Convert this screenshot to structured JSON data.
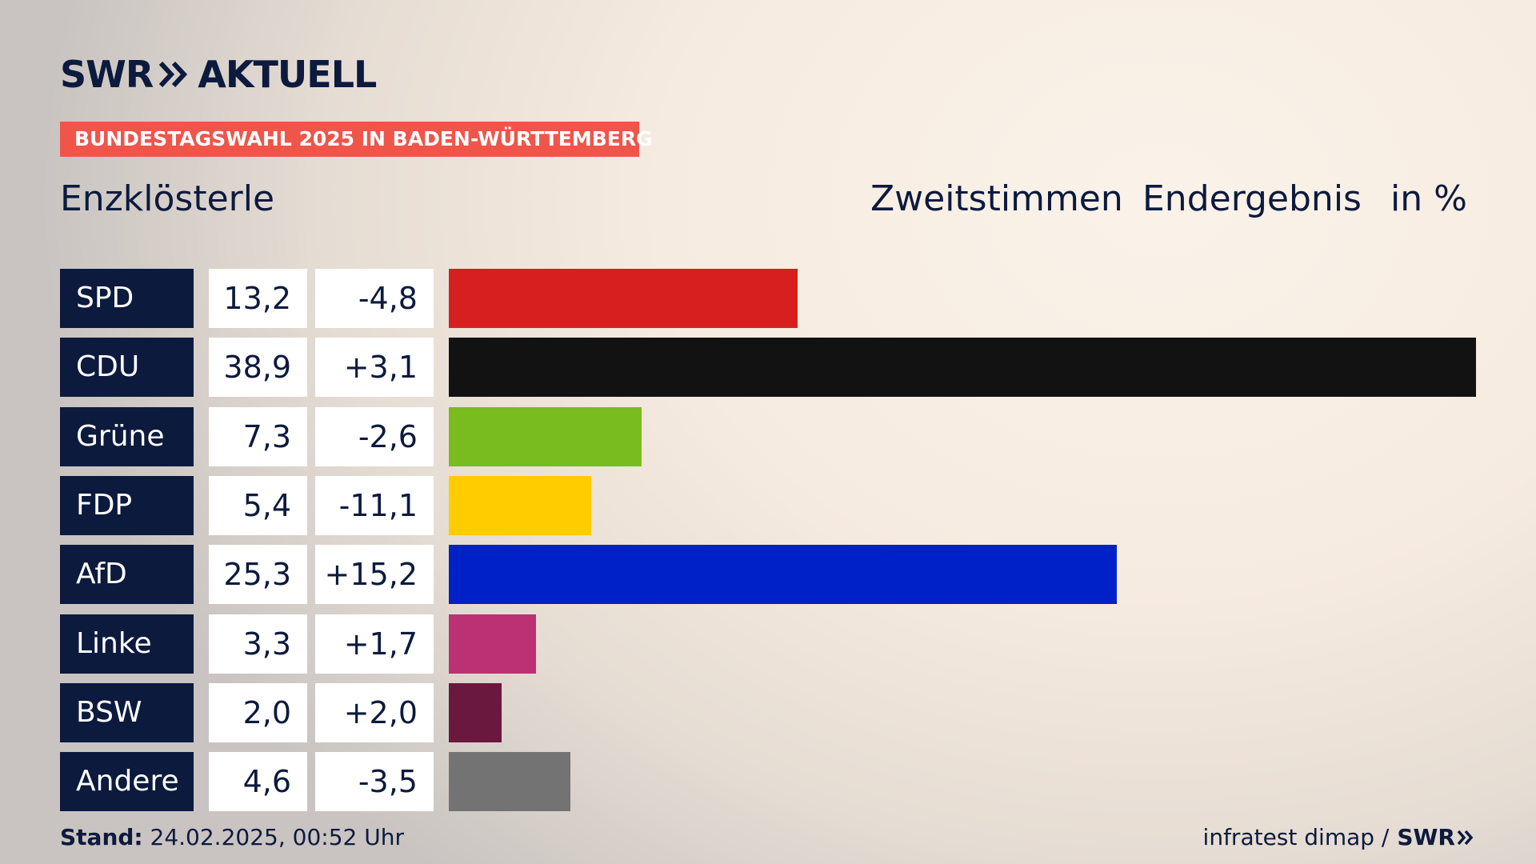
{
  "logo": {
    "left": "SWR",
    "right": "AKTUELL"
  },
  "banner": "BUNDESTAGSWAHL 2025 IN BADEN-WÜRTTEMBERG",
  "region": "Enzklösterle",
  "header": {
    "votes": "Zweitstimmen",
    "status": "Endergebnis",
    "unit": "in %"
  },
  "colors": {
    "navy": "#0c1a3e",
    "banner": "#f0554a"
  },
  "chart_data": {
    "type": "bar",
    "orientation": "horizontal",
    "categories": [
      "SPD",
      "CDU",
      "Grüne",
      "FDP",
      "AfD",
      "Linke",
      "BSW",
      "Andere"
    ],
    "series": [
      {
        "values": [
          13.2,
          38.9,
          7.3,
          5.4,
          25.3,
          3.3,
          2.0,
          4.6
        ],
        "labels": [
          "13,2",
          "38,9",
          "7,3",
          "5,4",
          "25,3",
          "3,3",
          "2,0",
          "4,6"
        ]
      }
    ],
    "diff_labels": [
      "-4,8",
      "+3,1",
      "-2,6",
      "-11,1",
      "+15,2",
      "+1,7",
      "+2,0",
      "-3,5"
    ],
    "diff_values": [
      -4.8,
      3.1,
      -2.6,
      -11.1,
      15.2,
      1.7,
      2.0,
      -3.5
    ],
    "bar_colors": [
      "#d81f1f",
      "#121212",
      "#79bc1e",
      "#ffcc00",
      "#0021c7",
      "#bc3074",
      "#6a183e",
      "#737373"
    ],
    "xlim": [
      0,
      38.9
    ],
    "grid": false,
    "legend": "none"
  },
  "footer": {
    "stand_label": "Stand:",
    "stand_value": " 24.02.2025, 00:52 Uhr",
    "source": "infratest dimap /",
    "source_logo": "SWR"
  }
}
